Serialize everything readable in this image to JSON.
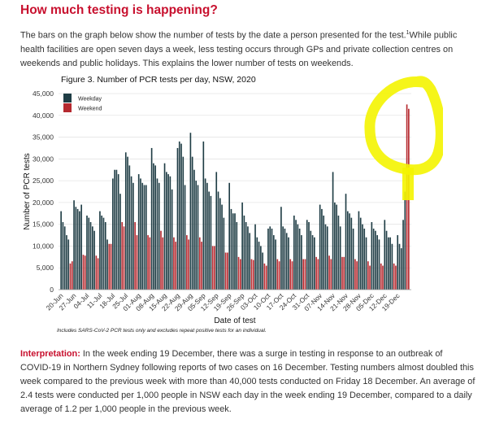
{
  "heading": "How much testing is happening?",
  "intro": {
    "text": "The bars on the graph below show the number of tests by the date a person presented for the test.",
    "footnote_marker": "1",
    "text2": "While public health facilities are open seven days a week, less testing occurs through GPs and private collection centres on weekends and public holidays. This explains the lower number of tests on weekends."
  },
  "interpretation": {
    "label": "Interpretation:",
    "text": "In the week ending 19 December, there was a surge in testing in response to an outbreak of COVID-19 in Northern Sydney following reports of two cases on 16 December. Testing numbers almost doubled this week compared to the previous week with more than 40,000 tests conducted on Friday 18 December. An average of 2.4 tests were conducted per 1,000 people in NSW each day in the week ending 19 December, compared to a daily average of 1.2 per 1,000 people in the previous week."
  },
  "colors": {
    "weekday": "#1f3d45",
    "weekend": "#b5292f",
    "highlight": "#f4f400",
    "heading": "#c8102e"
  },
  "chart_data": {
    "type": "bar",
    "title": "Figure 3. Number of PCR tests per day, NSW, 2020",
    "xlabel": "Date of test",
    "ylabel": "Number of PCR tests",
    "note": "Includes SARS-CoV-2 PCR tests only and excludes repeat positive tests for an individual.",
    "ylim": [
      0,
      45000
    ],
    "yticks": [
      0,
      5000,
      10000,
      15000,
      20000,
      25000,
      30000,
      35000,
      40000,
      45000
    ],
    "ytick_labels": [
      "0",
      "5,000",
      "10,000",
      "15,000",
      "20,000",
      "25,000",
      "30,000",
      "35,000",
      "40,000",
      "45,000"
    ],
    "xtick_labels": [
      "20-Jun",
      "27-Jun",
      "04-Jul",
      "11-Jul",
      "18-Jul",
      "25-Jul",
      "01-Aug",
      "08-Aug",
      "15-Aug",
      "22-Aug",
      "29-Aug",
      "05-Sep",
      "12-Sep",
      "19-Sep",
      "26-Sep",
      "03-Oct",
      "10-Oct",
      "17-Oct",
      "24-Oct",
      "31-Oct",
      "07-Nov",
      "14-Nov",
      "21-Nov",
      "28-Nov",
      "05-Dec",
      "12-Dec",
      "19-Dec"
    ],
    "grid": true,
    "legend_position": "top-left",
    "series": [
      {
        "name": "Weekday",
        "color": "#1f3d45"
      },
      {
        "name": "Weekend",
        "color": "#b5292f"
      }
    ],
    "weeks": [
      [
        18000,
        15500,
        14500,
        12500,
        11500,
        6000,
        6500
      ],
      [
        20500,
        19000,
        18500,
        18000,
        19500,
        8000,
        7800
      ],
      [
        17000,
        16500,
        15500,
        14500,
        13500,
        7800,
        7200
      ],
      [
        18000,
        17000,
        16500,
        15500,
        11500,
        10500,
        10500
      ],
      [
        25500,
        27500,
        27500,
        26500,
        22000,
        15500,
        14500
      ],
      [
        31500,
        30500,
        28500,
        26000,
        24500,
        15500,
        12500
      ],
      [
        26500,
        25500,
        24500,
        24000,
        24000,
        12500,
        12000
      ],
      [
        32500,
        29000,
        28500,
        25500,
        24500,
        13500,
        12000
      ],
      [
        29000,
        27000,
        26500,
        26000,
        23000,
        12000,
        11000
      ],
      [
        32500,
        34000,
        33500,
        30500,
        24000,
        12500,
        11500
      ],
      [
        36000,
        30500,
        27500,
        25000,
        24000,
        12000,
        11000
      ],
      [
        34000,
        25500,
        24500,
        22500,
        21500,
        10000,
        10000
      ],
      [
        27000,
        22500,
        21000,
        19500,
        16500,
        8500,
        8500
      ],
      [
        24500,
        18500,
        17500,
        17500,
        15500,
        7500,
        7000
      ],
      [
        20000,
        17000,
        15500,
        14500,
        13000,
        7000,
        6800
      ],
      [
        15000,
        12000,
        11000,
        10000,
        8500,
        6000,
        5500
      ],
      [
        14000,
        14500,
        14000,
        12500,
        11500,
        7000,
        6500
      ],
      [
        19000,
        14500,
        14000,
        13000,
        12000,
        7000,
        6500
      ],
      [
        17000,
        16000,
        15000,
        14000,
        12500,
        7000,
        7000
      ],
      [
        16000,
        15500,
        13500,
        12500,
        12000,
        7500,
        7000
      ],
      [
        19500,
        18500,
        17000,
        15000,
        14500,
        7800,
        7000
      ],
      [
        27000,
        20000,
        19500,
        17000,
        14500,
        7500,
        7500
      ],
      [
        22000,
        18000,
        17500,
        16500,
        14000,
        7000,
        6500
      ],
      [
        18000,
        16500,
        15000,
        14000,
        12000,
        6500,
        5500
      ],
      [
        15500,
        14000,
        13500,
        12500,
        11500,
        6000,
        5500
      ],
      [
        16000,
        13500,
        12000,
        12000,
        10500,
        6000,
        5500
      ],
      [
        12500,
        10500,
        9500,
        16000,
        22500,
        42500,
        41500
      ]
    ]
  }
}
